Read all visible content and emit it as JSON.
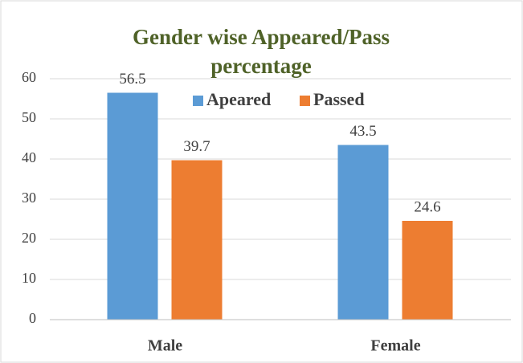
{
  "chart_data": {
    "type": "bar",
    "title": "Gender wise Appeared/Pass percentage",
    "categories": [
      "Male",
      "Female"
    ],
    "series": [
      {
        "name": "Apeared",
        "color": "#5b9bd5",
        "values": [
          56.5,
          43.5
        ]
      },
      {
        "name": "Passed",
        "color": "#ed7d31",
        "values": [
          39.7,
          24.6
        ]
      }
    ],
    "ylim": [
      0,
      60
    ],
    "yticks": [
      0,
      10,
      20,
      30,
      40,
      50,
      60
    ],
    "grid": true,
    "legend": "top"
  }
}
